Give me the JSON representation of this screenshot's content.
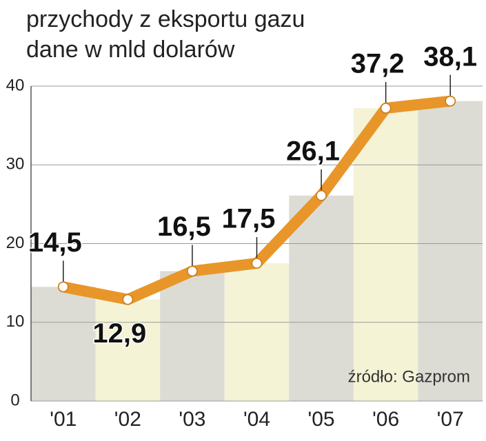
{
  "chart_data": {
    "type": "line",
    "title": "przychody z eksportu gazu",
    "subtitle": "dane w mld dolarów",
    "source": "źródło: Gazprom",
    "categories": [
      "'01",
      "'02",
      "'03",
      "'04",
      "'05",
      "'06",
      "'07"
    ],
    "series": [
      {
        "name": "przychody",
        "color": "#e8962a",
        "values": [
          14.5,
          12.9,
          16.5,
          17.5,
          26.1,
          37.2,
          38.1
        ],
        "value_labels": [
          "14,5",
          "12,9",
          "16,5",
          "17,5",
          "26,1",
          "37,2",
          "38,1"
        ]
      }
    ],
    "band_colors": [
      "#dcdcd5",
      "#f4f3d6"
    ],
    "ylim": [
      0,
      40
    ],
    "yticks": [
      0,
      10,
      20,
      30,
      40
    ],
    "grid": true
  }
}
